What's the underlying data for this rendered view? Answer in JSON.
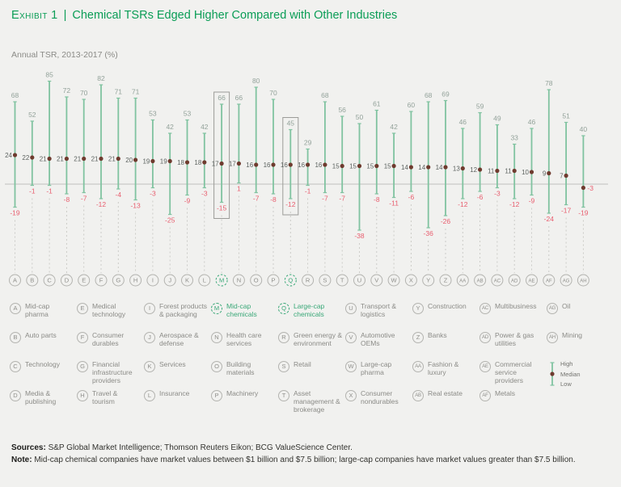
{
  "header": {
    "exhibit_label": "Exhibit 1",
    "separator": "|",
    "title": "Chemical TSRs Edged Higher Compared with Other Industries",
    "subtitle": "Annual TSR, 2013-2017 (%)"
  },
  "chart_data": {
    "type": "range-dot",
    "title": "Annual TSR, 2013-2017 (%)",
    "categories": [
      "A",
      "B",
      "C",
      "D",
      "E",
      "F",
      "G",
      "H",
      "I",
      "J",
      "K",
      "L",
      "M",
      "N",
      "O",
      "P",
      "Q",
      "R",
      "S",
      "T",
      "U",
      "V",
      "W",
      "X",
      "Y",
      "Z",
      "AA",
      "AB",
      "AC",
      "AD",
      "AE",
      "AF",
      "AG",
      "AH"
    ],
    "series": [
      {
        "name": "High",
        "values": [
          68,
          52,
          85,
          72,
          70,
          82,
          71,
          71,
          53,
          42,
          53,
          42,
          66,
          66,
          80,
          70,
          45,
          29,
          68,
          56,
          50,
          61,
          42,
          60,
          68,
          69,
          46,
          59,
          49,
          33,
          46,
          78,
          51,
          40
        ]
      },
      {
        "name": "Median",
        "values": [
          24,
          22,
          21,
          21,
          21,
          21,
          21,
          20,
          19,
          19,
          18,
          18,
          17,
          17,
          16,
          16,
          16,
          16,
          16,
          15,
          15,
          15,
          15,
          14,
          14,
          14,
          13,
          12,
          11,
          11,
          10,
          9,
          7,
          -3
        ]
      },
      {
        "name": "Low",
        "values": [
          -19,
          -1,
          -1,
          -8,
          -7,
          -12,
          -4,
          -13,
          -3,
          -25,
          -9,
          -3,
          -15,
          1,
          -7,
          -8,
          -12,
          -1,
          -7,
          -7,
          -38,
          -8,
          -11,
          -6,
          -36,
          -26,
          -12,
          -6,
          -3,
          -12,
          -9,
          -24,
          -17,
          -19
        ]
      }
    ],
    "highlighted": [
      "M",
      "Q"
    ],
    "ylim": [
      -45,
      90
    ],
    "grid": false,
    "legend_position": "bottom-right",
    "colors": {
      "line": "#80c3a0",
      "dot": "#6f3b2f",
      "high_label": "#93a29a",
      "median_label": "#5d6360",
      "low_label": "#e85d6e",
      "axis": "#c0c0bc",
      "dash": "#c8c8c4",
      "badge": "#b3b3af",
      "badge_text": "#8f8f8b",
      "box": "#9c9c98",
      "green": "#3aa878",
      "bg": "#f1f1ef"
    }
  },
  "legend": {
    "columns": [
      [
        {
          "letter": "A",
          "label": "Mid-cap pharma"
        },
        {
          "letter": "B",
          "label": "Auto parts"
        },
        {
          "letter": "C",
          "label": "Technology"
        },
        {
          "letter": "D",
          "label": "Media & publishing"
        }
      ],
      [
        {
          "letter": "E",
          "label": "Medical technology"
        },
        {
          "letter": "F",
          "label": "Consumer durables"
        },
        {
          "letter": "G",
          "label": "Financial infrastructure providers"
        },
        {
          "letter": "H",
          "label": "Travel & tourism"
        }
      ],
      [
        {
          "letter": "I",
          "label": "Forest products & packaging"
        },
        {
          "letter": "J",
          "label": "Aerospace & defense"
        },
        {
          "letter": "K",
          "label": "Services"
        },
        {
          "letter": "L",
          "label": "Insurance"
        }
      ],
      [
        {
          "letter": "M",
          "label": "Mid-cap chemicals",
          "highlight": true
        },
        {
          "letter": "N",
          "label": "Health care services"
        },
        {
          "letter": "O",
          "label": "Building materials"
        },
        {
          "letter": "P",
          "label": "Machinery"
        }
      ],
      [
        {
          "letter": "Q",
          "label": "Large-cap chemicals",
          "highlight": true
        },
        {
          "letter": "R",
          "label": "Green energy & environment"
        },
        {
          "letter": "S",
          "label": "Retail"
        },
        {
          "letter": "T",
          "label": "Asset management & brokerage"
        }
      ],
      [
        {
          "letter": "U",
          "label": "Transport & logistics"
        },
        {
          "letter": "V",
          "label": "Automotive OEMs"
        },
        {
          "letter": "W",
          "label": "Large-cap pharma"
        },
        {
          "letter": "X",
          "label": "Consumer nondurables"
        }
      ],
      [
        {
          "letter": "Y",
          "label": "Construction"
        },
        {
          "letter": "Z",
          "label": "Banks"
        },
        {
          "letter": "AA",
          "label": "Fashion & luxury"
        },
        {
          "letter": "AB",
          "label": "Real estate"
        }
      ],
      [
        {
          "letter": "AC",
          "label": "Multibusiness"
        },
        {
          "letter": "AD",
          "label": "Power & gas utilities"
        },
        {
          "letter": "AE",
          "label": "Commercial service providers"
        },
        {
          "letter": "AF",
          "label": "Metals"
        }
      ],
      [
        {
          "letter": "AG",
          "label": "Oil"
        },
        {
          "letter": "AH",
          "label": "Mining"
        },
        {
          "type": "range-key",
          "labels": [
            "High",
            "Median",
            "Low"
          ]
        }
      ]
    ]
  },
  "footer": {
    "sources_label": "Sources:",
    "sources_text": " S&P Global Market Intelligence; Thomson Reuters Eikon; BCG ValueScience Center.",
    "note_label": "Note:",
    "note_text": " Mid-cap chemical companies have market values between $1 billion and $7.5 billion; large-cap companies have market values greater than $7.5 billion."
  }
}
